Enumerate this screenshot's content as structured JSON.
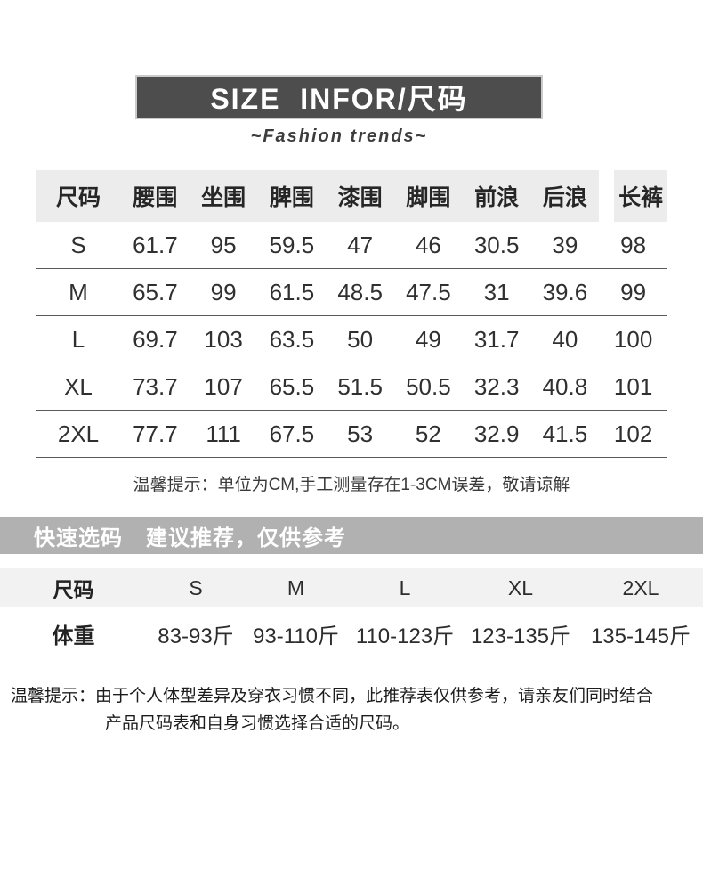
{
  "banner": {
    "title": "SIZE  INFOR/尺码",
    "bg": "#4d4d4d"
  },
  "subtitle": "~Fashion trends~",
  "size_table": {
    "headers": [
      "尺码",
      "腰围",
      "坐围",
      "脾围",
      "漆围",
      "脚围",
      "前浪",
      "后浪",
      "长裤"
    ],
    "rows": [
      [
        "S",
        "61.7",
        "95",
        "59.5",
        "47",
        "46",
        "30.5",
        "39",
        "98"
      ],
      [
        "M",
        "65.7",
        "99",
        "61.5",
        "48.5",
        "47.5",
        "31",
        "39.6",
        "99"
      ],
      [
        "L",
        "69.7",
        "103",
        "63.5",
        "50",
        "49",
        "31.7",
        "40",
        "100"
      ],
      [
        "XL",
        "73.7",
        "107",
        "65.5",
        "51.5",
        "50.5",
        "32.3",
        "40.8",
        "101"
      ],
      [
        "2XL",
        "77.7",
        "111",
        "67.5",
        "53",
        "52",
        "32.9",
        "41.5",
        "102"
      ]
    ]
  },
  "note_cm": "温馨提示：单位为CM,手工测量存在1-3CM误差，敬请谅解",
  "quick_band": {
    "label": "快速选码",
    "sub": "建议推荐，仅供参考",
    "bg": "#b1b1b1"
  },
  "quick_table": {
    "row_size": [
      "尺码",
      "S",
      "M",
      "L",
      "XL",
      "2XL"
    ],
    "row_weight": [
      "体重",
      "83-93斤",
      "93-110斤",
      "110-123斤",
      "123-135斤",
      "135-145斤"
    ]
  },
  "bottom_note": {
    "line1": "温馨提示：由于个人体型差异及穿衣习惯不同，此推荐表仅供参考，请亲友们同时结合",
    "line2": "产品尺码表和自身习惯选择合适的尺码。"
  }
}
